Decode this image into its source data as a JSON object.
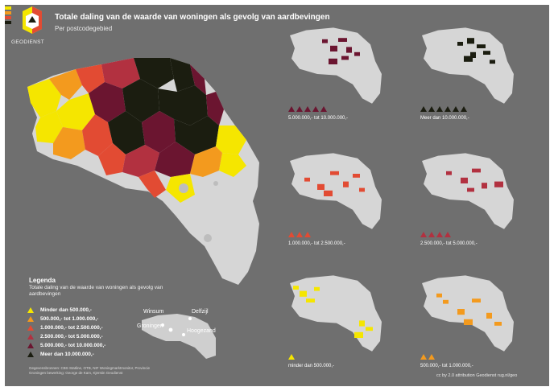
{
  "header": {
    "title": "Totale daling van de waarde van woningen als gevolg van aardbevingen",
    "subtitle": "Per postcodegebied",
    "brand": "GEODIENST"
  },
  "legend": {
    "title": "Legenda",
    "description": "Totale daling van de waarde van woningen als gevolg van aardbevingen",
    "items": [
      {
        "label": "Minder dan 500.000,-",
        "color": "#f5e600"
      },
      {
        "label": "500.000,- tot 1.000.000,-",
        "color": "#f39a1e"
      },
      {
        "label": "1.000.000,- tot 2.500.000,-",
        "color": "#e24b33"
      },
      {
        "label": "2.500.000,- tot 5.000.000,-",
        "color": "#b23140"
      },
      {
        "label": "5.000.000,- tot 10.000.000,-",
        "color": "#6b1530"
      },
      {
        "label": "Meer dan 10.000.000,-",
        "color": "#1b1d10"
      }
    ]
  },
  "cities": {
    "winsum": "Winsum",
    "delfzijl": "Delfzijl",
    "groningen": "Groningen",
    "hoogezand": "Hoogezand"
  },
  "panels": [
    {
      "label": "5.000.000,- tot 10.000.000,-",
      "color": "#6b1530",
      "count": 5
    },
    {
      "label": "Meer dan 10.000.000,-",
      "color": "#1b1d10",
      "count": 6
    },
    {
      "label": "1.000.000,- tot 2.500.000,-",
      "color": "#e24b33",
      "count": 3
    },
    {
      "label": "2.500.000,- tot 5.000.000,-",
      "color": "#b23140",
      "count": 4
    },
    {
      "label": "minder dan 500.000,-",
      "color": "#f5e600",
      "count": 1
    },
    {
      "label": "500.000,- tot 1.000.000,-",
      "color": "#f39a1e",
      "count": 2
    }
  ],
  "footer": {
    "sources": "Gegevensbronnen: CBS Statline, OTB, NIF Woningmarktmonitor, Provincie Groningen bewerking: George de Kam, Kjerstin Geodienst",
    "credit": "cc by 2.0 attribution Geodienst rug.nl/geo"
  }
}
